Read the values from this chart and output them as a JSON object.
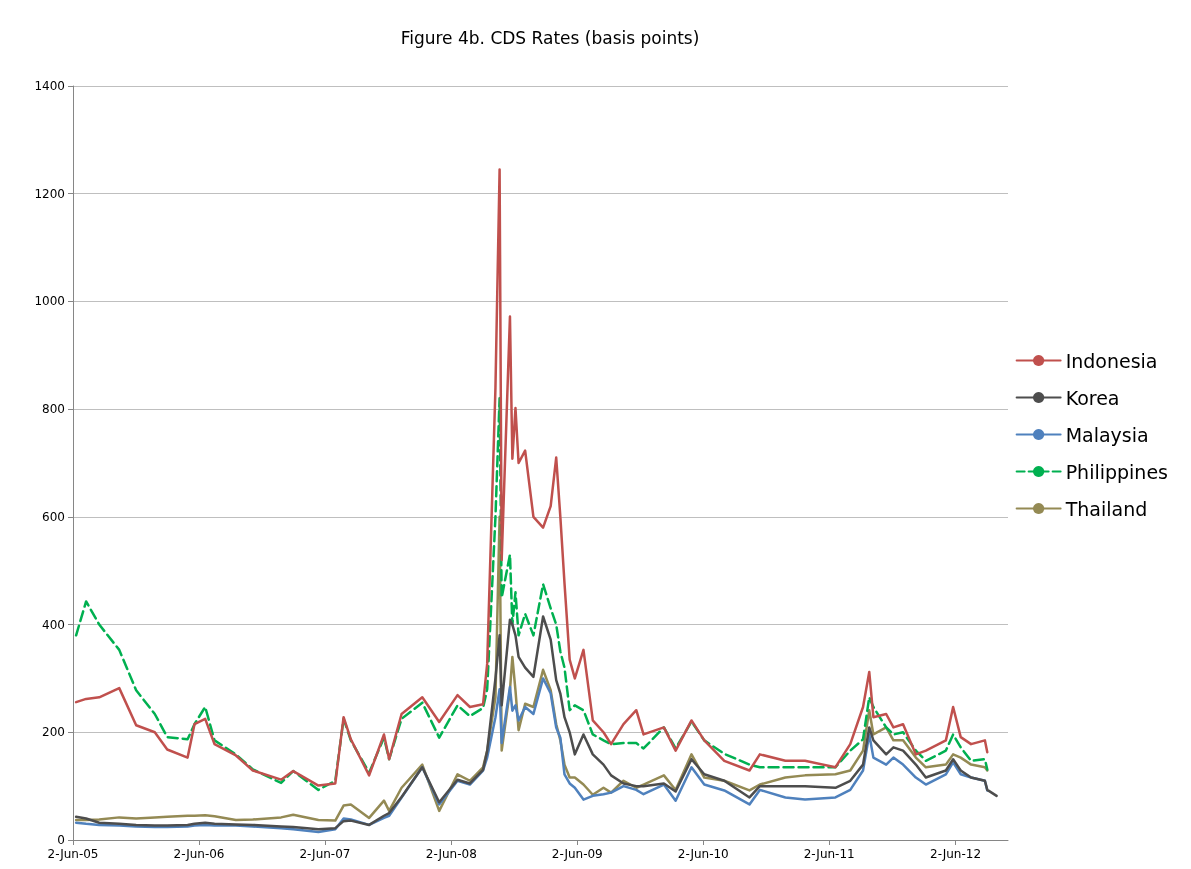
{
  "chart_data": {
    "type": "line",
    "title": "Figure 4b. CDS Rates (basis points)",
    "x": [
      "2005-06-11",
      "2005-07-10",
      "2005-08-17",
      "2005-10-14",
      "2005-12-02",
      "2006-01-25",
      "2006-03-02",
      "2006-04-30",
      "2006-05-20",
      "2006-06-20",
      "2006-07-17",
      "2006-09-17",
      "2006-11-05",
      "2007-01-26",
      "2007-03-02",
      "2007-05-14",
      "2007-07-02",
      "2007-07-26",
      "2007-08-16",
      "2007-10-08",
      "2007-11-20",
      "2007-12-05",
      "2008-01-10",
      "2008-03-10",
      "2008-04-28",
      "2008-06-20",
      "2008-07-26",
      "2008-09-02",
      "2008-09-14",
      "2008-10-08",
      "2008-10-20",
      "2008-10-26",
      "2008-11-19",
      "2008-11-26",
      "2008-12-05",
      "2008-12-14",
      "2009-01-02",
      "2009-01-26",
      "2009-02-23",
      "2009-03-17",
      "2009-04-02",
      "2009-04-14",
      "2009-04-26",
      "2009-05-11",
      "2009-05-26",
      "2009-06-20",
      "2009-07-17",
      "2009-08-17",
      "2009-09-08",
      "2009-10-14",
      "2009-11-20",
      "2009-12-11",
      "2010-02-08",
      "2010-03-14",
      "2010-04-29",
      "2010-06-05",
      "2010-08-02",
      "2010-10-14",
      "2010-11-13",
      "2011-01-26",
      "2011-03-24",
      "2011-06-20",
      "2011-08-02",
      "2011-09-08",
      "2011-09-26",
      "2011-10-08",
      "2011-11-14",
      "2011-12-05",
      "2012-01-02",
      "2012-02-08",
      "2012-03-08",
      "2012-05-05",
      "2012-05-26",
      "2012-06-17",
      "2012-07-17",
      "2012-08-26",
      "2012-09-02",
      "2012-09-29"
    ],
    "series": [
      {
        "name": "Indonesia",
        "color": "#c0504d",
        "values": [
          256,
          262,
          265,
          282,
          213,
          200,
          168,
          153,
          215,
          225,
          178,
          157,
          129,
          112,
          128,
          101,
          105,
          228,
          187,
          120,
          196,
          150,
          234,
          265,
          219,
          269,
          247,
          252,
          327,
          840,
          1245,
          520,
          972,
          708,
          802,
          700,
          723,
          600,
          580,
          620,
          710,
          600,
          477,
          335,
          300,
          353,
          222,
          200,
          178,
          215,
          241,
          196,
          209,
          166,
          222,
          185,
          147,
          129,
          159,
          147,
          147,
          135,
          178,
          247,
          312,
          228,
          234,
          209,
          215,
          159,
          166,
          185,
          247,
          191,
          178,
          185,
          163,
          null
        ]
      },
      {
        "name": "Korea",
        "color": "#4d4d4d",
        "values": [
          43,
          40,
          32,
          30,
          28,
          27,
          27,
          28,
          30,
          32,
          30,
          29,
          28,
          25,
          24,
          20,
          22,
          35,
          36,
          28,
          45,
          50,
          80,
          135,
          70,
          112,
          105,
          130,
          165,
          300,
          380,
          250,
          409,
          400,
          380,
          340,
          320,
          303,
          415,
          372,
          297,
          272,
          228,
          200,
          159,
          196,
          159,
          140,
          120,
          105,
          100,
          100,
          105,
          90,
          150,
          122,
          110,
          79,
          100,
          100,
          100,
          97,
          110,
          140,
          209,
          185,
          159,
          172,
          166,
          140,
          116,
          129,
          150,
          129,
          116,
          110,
          93,
          82
        ]
      },
      {
        "name": "Malaysia",
        "color": "#4f81bd",
        "values": [
          32,
          30,
          28,
          27,
          25,
          24,
          24,
          25,
          27,
          28,
          27,
          27,
          25,
          22,
          20,
          15,
          20,
          40,
          38,
          28,
          41,
          45,
          79,
          135,
          66,
          110,
          103,
          129,
          153,
          228,
          280,
          180,
          284,
          240,
          250,
          222,
          247,
          234,
          300,
          272,
          209,
          190,
          122,
          105,
          97,
          75,
          82,
          85,
          88,
          100,
          93,
          85,
          103,
          73,
          135,
          103,
          92,
          66,
          93,
          79,
          75,
          79,
          93,
          129,
          196,
          153,
          140,
          153,
          140,
          116,
          103,
          122,
          144,
          122,
          116,
          110,
          92,
          null
        ]
      },
      {
        "name": "Philippines",
        "color": "#00b050",
        "line_style": "dashed",
        "values": [
          380,
          443,
          400,
          353,
          278,
          234,
          191,
          187,
          215,
          247,
          185,
          159,
          131,
          106,
          128,
          93,
          110,
          225,
          185,
          125,
          190,
          150,
          225,
          255,
          190,
          250,
          230,
          245,
          280,
          600,
          820,
          450,
          530,
          400,
          460,
          380,
          420,
          380,
          475,
          430,
          400,
          350,
          320,
          241,
          250,
          241,
          196,
          185,
          178,
          180,
          180,
          170,
          209,
          170,
          220,
          185,
          160,
          140,
          135,
          135,
          135,
          135,
          166,
          187,
          265,
          247,
          209,
          196,
          200,
          166,
          147,
          166,
          196,
          172,
          147,
          150,
          131,
          null
        ]
      },
      {
        "name": "Thailand",
        "color": "#948a54",
        "values": [
          37,
          37,
          38,
          42,
          40,
          42,
          43,
          45,
          45,
          46,
          44,
          37,
          38,
          42,
          47,
          37,
          36,
          64,
          66,
          41,
          73,
          54,
          97,
          140,
          54,
          122,
          110,
          135,
          166,
          265,
          600,
          166,
          278,
          340,
          278,
          204,
          253,
          247,
          316,
          278,
          215,
          185,
          140,
          116,
          116,
          103,
          84,
          97,
          88,
          110,
          97,
          103,
          120,
          93,
          159,
          116,
          110,
          92,
          103,
          116,
          120,
          122,
          129,
          166,
          241,
          196,
          209,
          185,
          185,
          153,
          135,
          140,
          159,
          153,
          140,
          135,
          129,
          null
        ]
      }
    ],
    "xlim": [
      "2005-06-02",
      "2012-11-01"
    ],
    "xticks": [
      {
        "value": "2005-06-02",
        "label": "2-Jun-05"
      },
      {
        "value": "2006-06-02",
        "label": "2-Jun-06"
      },
      {
        "value": "2007-06-02",
        "label": "2-Jun-07"
      },
      {
        "value": "2008-06-02",
        "label": "2-Jun-08"
      },
      {
        "value": "2009-06-02",
        "label": "2-Jun-09"
      },
      {
        "value": "2010-06-02",
        "label": "2-Jun-10"
      },
      {
        "value": "2011-06-02",
        "label": "2-Jun-11"
      },
      {
        "value": "2012-06-02",
        "label": "2-Jun-12"
      }
    ],
    "ylim": [
      0,
      1400
    ],
    "yticks": [
      0,
      200,
      400,
      600,
      800,
      1000,
      1200,
      1400
    ],
    "grid": "y",
    "legend": "right",
    "marker": "none",
    "line_style": "solid"
  }
}
